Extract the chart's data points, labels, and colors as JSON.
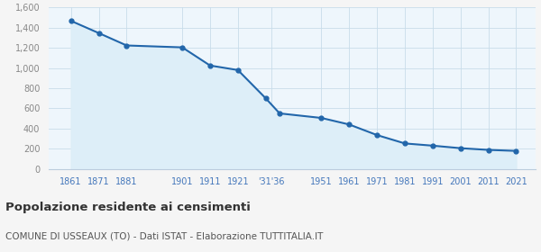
{
  "years": [
    1861,
    1871,
    1881,
    1901,
    1911,
    1921,
    1931,
    1936,
    1951,
    1961,
    1971,
    1981,
    1991,
    2001,
    2011,
    2021
  ],
  "population": [
    1468,
    1347,
    1224,
    1205,
    1025,
    980,
    700,
    550,
    505,
    440,
    335,
    252,
    230,
    205,
    188,
    178
  ],
  "line_color": "#2266aa",
  "fill_color": "#ddeef8",
  "marker_color": "#2266aa",
  "chart_bg_color": "#eef6fc",
  "fig_bg_color": "#f5f5f5",
  "grid_color": "#c8dcea",
  "xtick_color": "#4477bb",
  "ytick_color": "#888888",
  "spine_color": "#bbccdd",
  "title": "Popolazione residente ai censimenti",
  "subtitle": "COMUNE DI USSEAUX (TO) - Dati ISTAT - Elaborazione TUTTITALIA.IT",
  "title_color": "#333333",
  "subtitle_color": "#555555",
  "ylim": [
    0,
    1600
  ],
  "yticks": [
    0,
    200,
    400,
    600,
    800,
    1000,
    1200,
    1400,
    1600
  ],
  "xtick_positions": [
    1861,
    1871,
    1881,
    1901,
    1911,
    1921,
    1933,
    1951,
    1961,
    1971,
    1981,
    1991,
    2001,
    2011,
    2021
  ],
  "xtick_labels": [
    "1861",
    "1871",
    "1881",
    "1901",
    "1911",
    "1921",
    "'31'36",
    "1951",
    "1961",
    "1971",
    "1981",
    "1991",
    "2001",
    "2011",
    "2021"
  ],
  "xlim_left": 1853,
  "xlim_right": 2028
}
